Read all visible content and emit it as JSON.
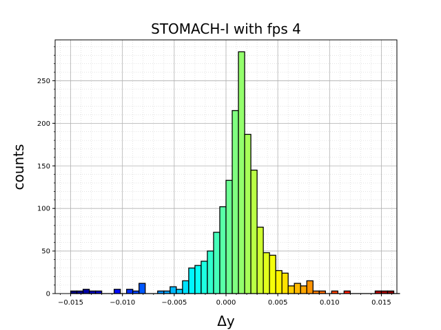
{
  "chart_data": {
    "type": "bar",
    "title": "STOMACH-I with fps 4",
    "xlabel": "Δy",
    "ylabel": "counts",
    "xlim": [
      -0.0165,
      0.0165
    ],
    "ylim": [
      0,
      298
    ],
    "grid": true,
    "colormap": "jet",
    "bin_width": 0.0006,
    "bin_start": -0.015,
    "x_ticks": [
      -0.015,
      -0.01,
      -0.005,
      0.0,
      0.005,
      0.01,
      0.015
    ],
    "x_tick_labels": [
      "−0.015",
      "−0.010",
      "−0.005",
      "0.000",
      "0.005",
      "0.010",
      "0.015"
    ],
    "y_ticks": [
      0,
      50,
      100,
      150,
      200,
      250
    ],
    "y_tick_labels": [
      "0",
      "50",
      "100",
      "150",
      "200",
      "250"
    ],
    "values": [
      3,
      3,
      5,
      3,
      3,
      0,
      0,
      5,
      0,
      5,
      3,
      12,
      0,
      0,
      3,
      3,
      8,
      5,
      15,
      30,
      33,
      38,
      50,
      72,
      102,
      133,
      215,
      284,
      187,
      145,
      78,
      48,
      45,
      27,
      24,
      9,
      12,
      9,
      15,
      3,
      3,
      0,
      3,
      0,
      3,
      0,
      0,
      0,
      0,
      3,
      3,
      3,
      0
    ]
  }
}
